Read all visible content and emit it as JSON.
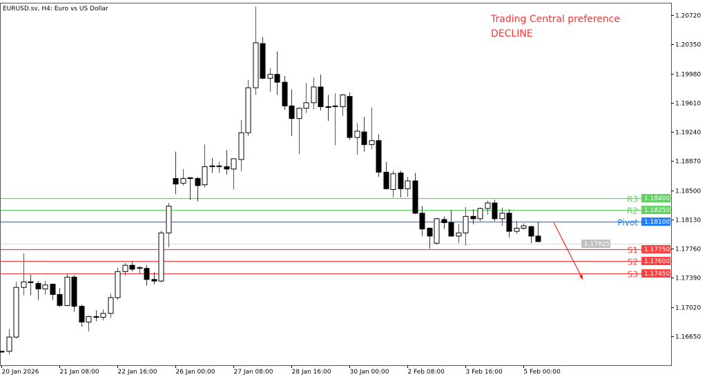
{
  "header": {
    "title": "EURUSD.sv, H4:  Euro vs US Dollar"
  },
  "annotation": {
    "line1": "Trading Central preference",
    "line2": "DECLINE",
    "color": "#ff3333"
  },
  "chart_data": {
    "type": "candlestick",
    "symbol": "EURUSD.sv",
    "timeframe": "H4",
    "ylim": [
      1.162,
      1.2108
    ],
    "y_ticks": [
      "1.20720",
      "1.20350",
      "1.19980",
      "1.19610",
      "1.19240",
      "1.18870",
      "1.18500",
      "1.18130",
      "1.17760",
      "1.17390",
      "1.17020",
      "1.16650"
    ],
    "x_ticks": [
      {
        "bar": 0,
        "label": "20 Jan 2026"
      },
      {
        "bar": 8,
        "label": "21 Jan 08:00"
      },
      {
        "bar": 16,
        "label": "22 Jan 16:00"
      },
      {
        "bar": 24,
        "label": "26 Jan 00:00"
      },
      {
        "bar": 32,
        "label": "27 Jan 08:00"
      },
      {
        "bar": 40,
        "label": "28 Jan 16:00"
      },
      {
        "bar": 48,
        "label": "30 Jan 00:00"
      },
      {
        "bar": 56,
        "label": "2 Feb 08:00"
      },
      {
        "bar": 64,
        "label": "3 Feb 16:00"
      },
      {
        "bar": 72,
        "label": "5 Feb 00:00"
      }
    ],
    "candles": [
      [
        1.1646,
        1.1646,
        1.1644,
        1.1645
      ],
      [
        1.1646,
        1.1674,
        1.1642,
        1.1664
      ],
      [
        1.1664,
        1.1734,
        1.1662,
        1.1727
      ],
      [
        1.1727,
        1.177,
        1.1717,
        1.1734
      ],
      [
        1.1734,
        1.1743,
        1.1717,
        1.1733
      ],
      [
        1.1732,
        1.1735,
        1.1711,
        1.1725
      ],
      [
        1.1725,
        1.1735,
        1.1718,
        1.173
      ],
      [
        1.1731,
        1.1732,
        1.1711,
        1.1718
      ],
      [
        1.1718,
        1.1726,
        1.1702,
        1.1704
      ],
      [
        1.1704,
        1.1744,
        1.1703,
        1.174
      ],
      [
        1.174,
        1.1742,
        1.1696,
        1.1703
      ],
      [
        1.1703,
        1.1705,
        1.1677,
        1.1683
      ],
      [
        1.1683,
        1.1691,
        1.1671,
        1.169
      ],
      [
        1.169,
        1.1698,
        1.1684,
        1.1689
      ],
      [
        1.1689,
        1.1699,
        1.1685,
        1.1694
      ],
      [
        1.1694,
        1.1719,
        1.1688,
        1.1714
      ],
      [
        1.1714,
        1.1752,
        1.1711,
        1.1747
      ],
      [
        1.1747,
        1.1758,
        1.1742,
        1.1755
      ],
      [
        1.1755,
        1.176,
        1.1747,
        1.175
      ],
      [
        1.1751,
        1.1754,
        1.1744,
        1.1752
      ],
      [
        1.1751,
        1.1755,
        1.1729,
        1.1737
      ],
      [
        1.1737,
        1.1746,
        1.1731,
        1.1735
      ],
      [
        1.1735,
        1.1799,
        1.1733,
        1.1796
      ],
      [
        1.1796,
        1.1834,
        1.1778,
        1.183
      ],
      [
        1.1865,
        1.1899,
        1.1845,
        1.1858
      ],
      [
        1.1859,
        1.1877,
        1.1856,
        1.1865
      ],
      [
        1.1866,
        1.1866,
        1.1838,
        1.1865
      ],
      [
        1.1865,
        1.1867,
        1.1836,
        1.1856
      ],
      [
        1.1857,
        1.1908,
        1.1854,
        1.188
      ],
      [
        1.1881,
        1.1891,
        1.1872,
        1.188
      ],
      [
        1.188,
        1.1886,
        1.1872,
        1.1881
      ],
      [
        1.188,
        1.1901,
        1.187,
        1.1877
      ],
      [
        1.1877,
        1.189,
        1.1851,
        1.189
      ],
      [
        1.1889,
        1.1939,
        1.1874,
        1.1923
      ],
      [
        1.1923,
        1.199,
        1.1919,
        1.198
      ],
      [
        1.198,
        1.2083,
        1.1971,
        1.2037
      ],
      [
        1.2036,
        1.2044,
        1.1991,
        1.1992
      ],
      [
        1.1992,
        1.2005,
        1.1975,
        1.1997
      ],
      [
        1.1997,
        1.2026,
        1.1971,
        1.1987
      ],
      [
        1.1987,
        1.1995,
        1.1952,
        1.1957
      ],
      [
        1.1957,
        1.1978,
        1.1919,
        1.1941
      ],
      [
        1.1941,
        1.1955,
        1.1896,
        1.1954
      ],
      [
        1.1954,
        1.1986,
        1.1948,
        1.1961
      ],
      [
        1.1961,
        1.1993,
        1.1953,
        1.1981
      ],
      [
        1.1981,
        1.1997,
        1.1951,
        1.1956
      ],
      [
        1.1956,
        1.1971,
        1.1938,
        1.1955
      ],
      [
        1.1956,
        1.1973,
        1.1907,
        1.1957
      ],
      [
        1.1956,
        1.1972,
        1.1944,
        1.1971
      ],
      [
        1.1969,
        1.1974,
        1.1914,
        1.1917
      ],
      [
        1.1917,
        1.1935,
        1.1895,
        1.1925
      ],
      [
        1.1924,
        1.1943,
        1.1899,
        1.1908
      ],
      [
        1.1908,
        1.1955,
        1.1902,
        1.1913
      ],
      [
        1.1913,
        1.1921,
        1.1867,
        1.1873
      ],
      [
        1.1873,
        1.1886,
        1.1851,
        1.1852
      ],
      [
        1.1851,
        1.1875,
        1.1841,
        1.1871
      ],
      [
        1.1872,
        1.1875,
        1.1841,
        1.1852
      ],
      [
        1.1852,
        1.1867,
        1.1842,
        1.1862
      ],
      [
        1.1862,
        1.1872,
        1.182,
        1.1821
      ],
      [
        1.1821,
        1.183,
        1.1792,
        1.1801
      ],
      [
        1.1802,
        1.1803,
        1.1776,
        1.1792
      ],
      [
        1.1783,
        1.1815,
        1.1781,
        1.1814
      ],
      [
        1.1813,
        1.1817,
        1.1801,
        1.1809
      ],
      [
        1.1809,
        1.1825,
        1.1791,
        1.1792
      ],
      [
        1.1792,
        1.1807,
        1.1783,
        1.1796
      ],
      [
        1.1796,
        1.1829,
        1.178,
        1.1817
      ],
      [
        1.1817,
        1.1826,
        1.1807,
        1.1814
      ],
      [
        1.1814,
        1.1828,
        1.1811,
        1.1827
      ],
      [
        1.1827,
        1.1837,
        1.1819,
        1.1834
      ],
      [
        1.1834,
        1.1838,
        1.1811,
        1.1814
      ],
      [
        1.1814,
        1.1828,
        1.1805,
        1.1821
      ],
      [
        1.1821,
        1.1826,
        1.179,
        1.1798
      ],
      [
        1.1798,
        1.1811,
        1.1795,
        1.1802
      ],
      [
        1.1802,
        1.1808,
        1.18,
        1.1805
      ],
      [
        1.1804,
        1.1805,
        1.1783,
        1.1792
      ],
      [
        1.1792,
        1.181,
        1.1784,
        1.1785
      ]
    ],
    "candle_format": [
      "open",
      "high",
      "low",
      "close"
    ],
    "current_price": {
      "value": 1.17825,
      "label": "1.17825",
      "color": "#c0c0c0"
    },
    "levels": [
      {
        "name": "R3",
        "value": 1.184,
        "label": "1.18400",
        "color": "#5fd35f"
      },
      {
        "name": "R2",
        "value": 1.1825,
        "label": "1.18250",
        "color": "#5fd35f"
      },
      {
        "name": "Pivot",
        "value": 1.181,
        "label": "1.18100",
        "color": "#1e7fff"
      },
      {
        "name": "S1",
        "value": 1.1775,
        "label": "1.17750",
        "color": "#ff4040"
      },
      {
        "name": "S2",
        "value": 1.176,
        "label": "1.17600",
        "color": "#ff4040"
      },
      {
        "name": "S3",
        "value": 1.1745,
        "label": "1.17450",
        "color": "#ff4040"
      }
    ],
    "arrow": {
      "from": {
        "bar": 76.2,
        "price": 1.1809
      },
      "to": {
        "bar": 80.2,
        "price": 1.1737
      },
      "color": "#ff0000"
    },
    "grid": false,
    "colors": {
      "bull_body": "#ffffff",
      "bear_body": "#000000",
      "outline": "#000000"
    }
  }
}
